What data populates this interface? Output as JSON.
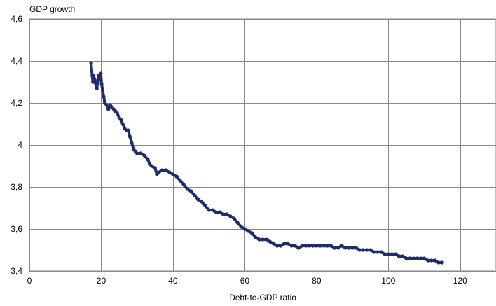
{
  "chart_data": {
    "type": "scatter",
    "ylabel": "GDP growth",
    "xlabel": "Debt-to-GDP ratio",
    "xlim": [
      0,
      130
    ],
    "ylim": [
      3.4,
      4.6
    ],
    "x_ticks": [
      0,
      20,
      40,
      60,
      80,
      100,
      120
    ],
    "x_tick_labels": [
      "0",
      "20",
      "40",
      "60",
      "80",
      "100",
      "120"
    ],
    "y_ticks": [
      3.4,
      3.6,
      3.8,
      4.0,
      4.2,
      4.4,
      4.6
    ],
    "y_tick_labels": [
      "3,4",
      "3,6",
      "3,8",
      "4",
      "4,2",
      "4,4",
      "4,6"
    ],
    "grid": true,
    "series": [
      {
        "color": "#1f2d6b",
        "points": [
          [
            17.2,
            4.39
          ],
          [
            17.3,
            4.36
          ],
          [
            17.5,
            4.33
          ],
          [
            17.7,
            4.3
          ],
          [
            17.9,
            4.33
          ],
          [
            18.2,
            4.31
          ],
          [
            18.5,
            4.29
          ],
          [
            18.8,
            4.27
          ],
          [
            19.0,
            4.3
          ],
          [
            19.3,
            4.33
          ],
          [
            19.6,
            4.31
          ],
          [
            19.9,
            4.34
          ],
          [
            20.1,
            4.29
          ],
          [
            20.4,
            4.26
          ],
          [
            20.7,
            4.23
          ],
          [
            21.0,
            4.2
          ],
          [
            21.5,
            4.19
          ],
          [
            22.0,
            4.17
          ],
          [
            22.5,
            4.19
          ],
          [
            23.0,
            4.18
          ],
          [
            23.5,
            4.17
          ],
          [
            24.0,
            4.16
          ],
          [
            24.5,
            4.15
          ],
          [
            25.0,
            4.13
          ],
          [
            25.5,
            4.12
          ],
          [
            26.0,
            4.1
          ],
          [
            26.5,
            4.08
          ],
          [
            27.0,
            4.07
          ],
          [
            27.5,
            4.07
          ],
          [
            28.0,
            4.04
          ],
          [
            28.5,
            4.01
          ],
          [
            29.0,
            3.98
          ],
          [
            29.5,
            3.97
          ],
          [
            30.0,
            3.96
          ],
          [
            31.0,
            3.96
          ],
          [
            32.0,
            3.95
          ],
          [
            33.0,
            3.93
          ],
          [
            33.5,
            3.91
          ],
          [
            34.0,
            3.9
          ],
          [
            35.0,
            3.89
          ],
          [
            35.5,
            3.86
          ],
          [
            36.0,
            3.87
          ],
          [
            37.0,
            3.88
          ],
          [
            38.0,
            3.88
          ],
          [
            39.0,
            3.87
          ],
          [
            40.0,
            3.86
          ],
          [
            41.0,
            3.85
          ],
          [
            42.0,
            3.83
          ],
          [
            43.0,
            3.81
          ],
          [
            44.0,
            3.79
          ],
          [
            45.0,
            3.78
          ],
          [
            46.0,
            3.76
          ],
          [
            47.0,
            3.74
          ],
          [
            48.0,
            3.73
          ],
          [
            49.0,
            3.71
          ],
          [
            50.0,
            3.69
          ],
          [
            51.0,
            3.69
          ],
          [
            52.0,
            3.68
          ],
          [
            53.0,
            3.68
          ],
          [
            54.0,
            3.67
          ],
          [
            55.0,
            3.67
          ],
          [
            56.0,
            3.66
          ],
          [
            57.0,
            3.65
          ],
          [
            58.0,
            3.63
          ],
          [
            59.0,
            3.61
          ],
          [
            60.0,
            3.6
          ],
          [
            61.0,
            3.59
          ],
          [
            62.0,
            3.58
          ],
          [
            63.0,
            3.56
          ],
          [
            64.0,
            3.55
          ],
          [
            65.0,
            3.55
          ],
          [
            66.0,
            3.55
          ],
          [
            67.0,
            3.54
          ],
          [
            68.0,
            3.53
          ],
          [
            69.0,
            3.52
          ],
          [
            70.0,
            3.52
          ],
          [
            71.0,
            3.53
          ],
          [
            72.0,
            3.53
          ],
          [
            73.0,
            3.52
          ],
          [
            74.0,
            3.52
          ],
          [
            75.0,
            3.51
          ],
          [
            76.0,
            3.52
          ],
          [
            77.0,
            3.52
          ],
          [
            78.0,
            3.52
          ],
          [
            79.0,
            3.52
          ],
          [
            80.0,
            3.52
          ],
          [
            81.0,
            3.52
          ],
          [
            82.0,
            3.52
          ],
          [
            83.0,
            3.52
          ],
          [
            84.0,
            3.52
          ],
          [
            85.0,
            3.51
          ],
          [
            86.0,
            3.51
          ],
          [
            87.0,
            3.52
          ],
          [
            88.0,
            3.51
          ],
          [
            89.0,
            3.51
          ],
          [
            90.0,
            3.51
          ],
          [
            91.0,
            3.51
          ],
          [
            92.0,
            3.5
          ],
          [
            93.0,
            3.5
          ],
          [
            94.0,
            3.5
          ],
          [
            95.0,
            3.5
          ],
          [
            96.0,
            3.49
          ],
          [
            97.0,
            3.49
          ],
          [
            98.0,
            3.49
          ],
          [
            99.0,
            3.48
          ],
          [
            100.0,
            3.48
          ],
          [
            101.0,
            3.48
          ],
          [
            102.0,
            3.48
          ],
          [
            103.0,
            3.47
          ],
          [
            104.0,
            3.47
          ],
          [
            105.0,
            3.46
          ],
          [
            106.0,
            3.46
          ],
          [
            107.0,
            3.46
          ],
          [
            108.0,
            3.46
          ],
          [
            109.0,
            3.46
          ],
          [
            110.0,
            3.46
          ],
          [
            111.0,
            3.45
          ],
          [
            112.0,
            3.45
          ],
          [
            113.0,
            3.45
          ],
          [
            114.0,
            3.44
          ],
          [
            115.0,
            3.44
          ]
        ]
      }
    ]
  }
}
